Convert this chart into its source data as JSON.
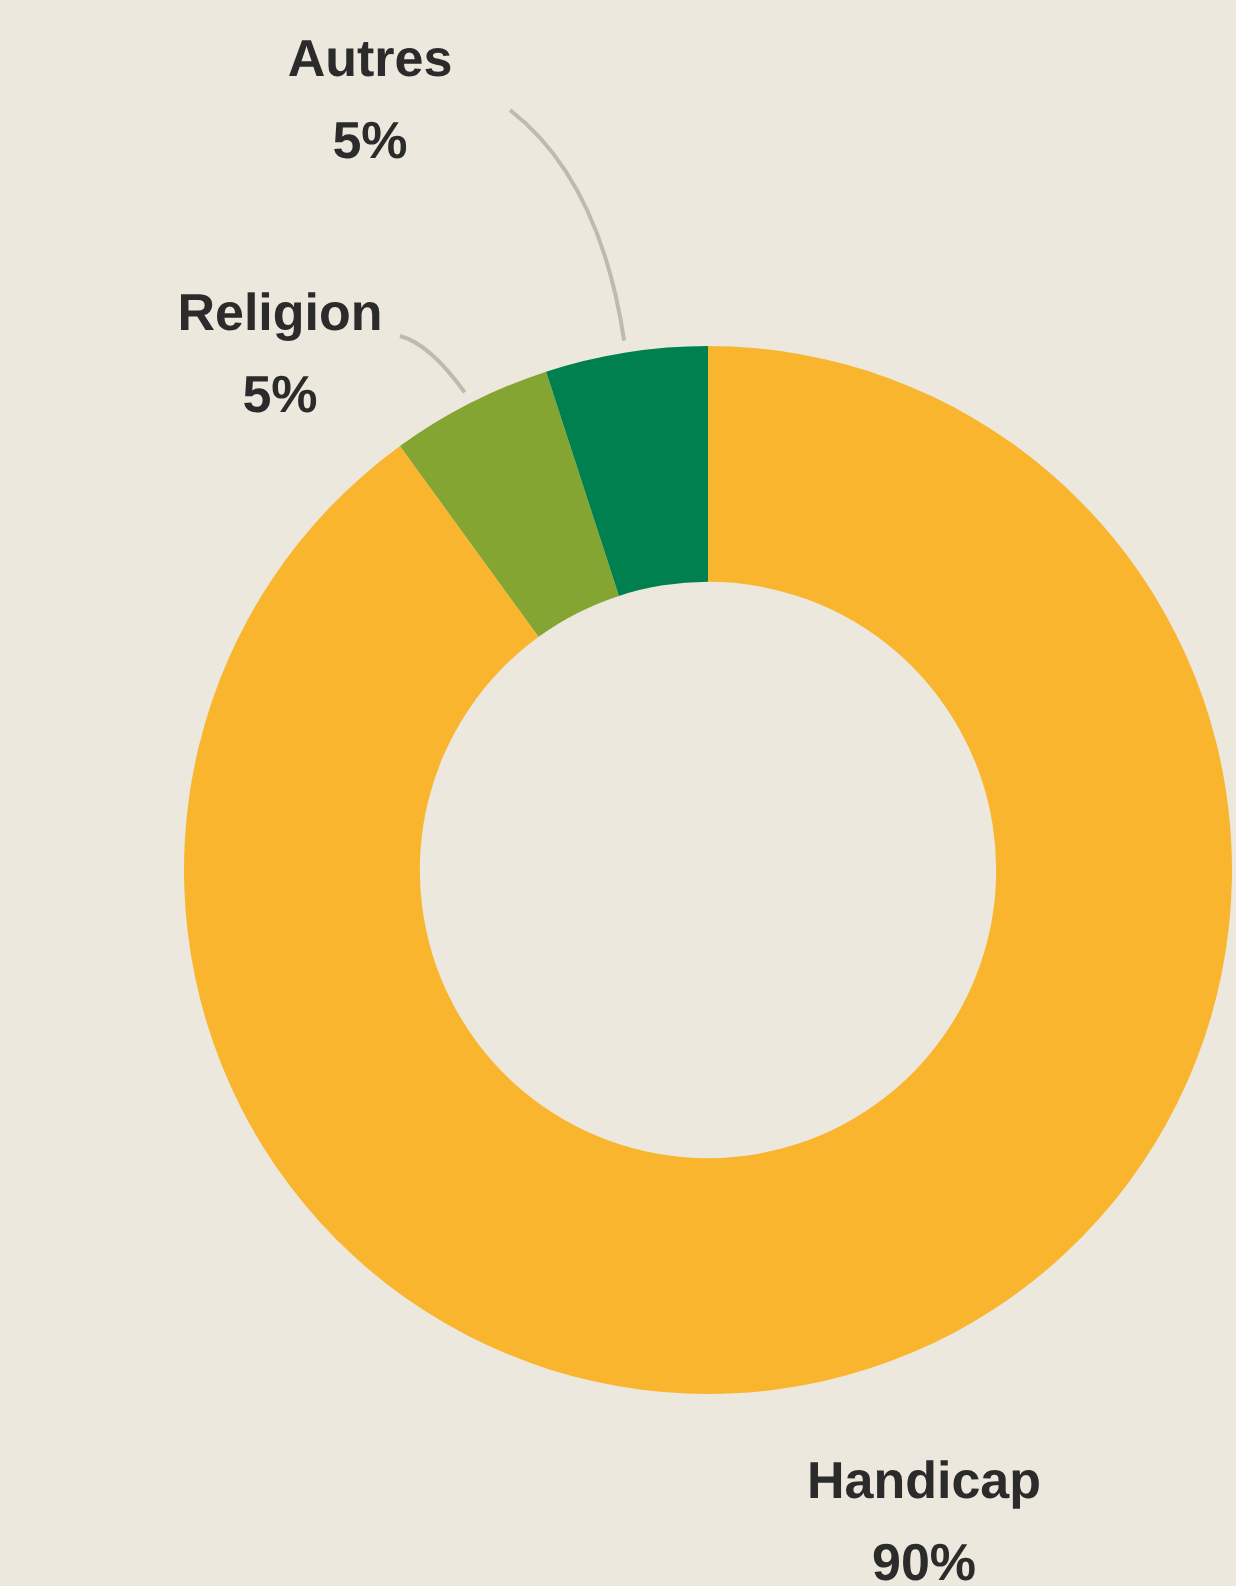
{
  "chart_data": {
    "type": "donut",
    "categories": [
      "Handicap",
      "Religion",
      "Autres"
    ],
    "values": [
      90,
      5,
      5
    ],
    "value_labels": [
      "90%",
      "5%",
      "5%"
    ],
    "colors": [
      "#f9b52d",
      "#84a531",
      "#00804e"
    ],
    "legend": false
  }
}
